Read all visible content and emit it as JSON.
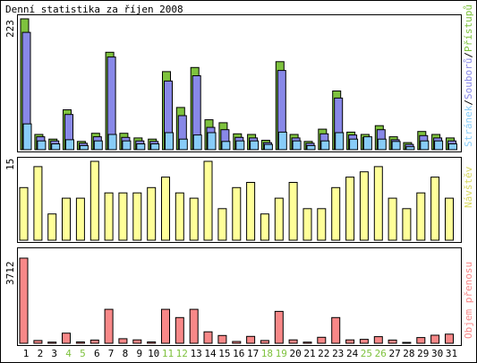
{
  "title": "Denní statistika za říjen 2008",
  "colors": {
    "green": "#7ec23e",
    "purple": "#8888e8",
    "lightblue": "#88ccf8",
    "yellow": "#ffff99",
    "red": "#f88888",
    "weekend": "#7ec23e",
    "text": "#000000",
    "edge": "#000000"
  },
  "chart_data": [
    {
      "type": "bar",
      "panel": "top",
      "categories": [
        "1",
        "2",
        "3",
        "4",
        "5",
        "6",
        "7",
        "8",
        "9",
        "10",
        "11",
        "12",
        "13",
        "14",
        "15",
        "16",
        "17",
        "18",
        "19",
        "20",
        "21",
        "22",
        "23",
        "24",
        "25",
        "26",
        "27",
        "28",
        "29",
        "30",
        "31"
      ],
      "weekend_days": [
        "4",
        "5",
        "11",
        "12",
        "18",
        "19",
        "25",
        "26"
      ],
      "ymax_label": "223",
      "ylim": [
        0,
        223
      ],
      "legend": {
        "stranek": "Stránek",
        "sep1": "/",
        "souboru": "Souborů",
        "sep2": "/",
        "pristupu": "Přístupů"
      },
      "series": [
        {
          "name": "Přístupů",
          "color_key": "green",
          "values": [
            223,
            26,
            18,
            68,
            14,
            28,
            166,
            28,
            20,
            18,
            133,
            72,
            140,
            51,
            46,
            27,
            26,
            16,
            150,
            26,
            14,
            35,
            100,
            30,
            26,
            41,
            22,
            12,
            31,
            26,
            20
          ]
        },
        {
          "name": "Souborů",
          "color_key": "purple",
          "values": [
            200,
            22,
            15,
            60,
            11,
            22,
            158,
            21,
            15,
            14,
            117,
            58,
            126,
            38,
            34,
            21,
            20,
            12,
            135,
            20,
            11,
            27,
            88,
            25,
            21,
            34,
            17,
            9,
            24,
            20,
            15
          ]
        },
        {
          "name": "Stránek",
          "color_key": "lightblue",
          "values": [
            44,
            15,
            10,
            17,
            7,
            15,
            26,
            15,
            10,
            10,
            29,
            18,
            25,
            29,
            14,
            15,
            15,
            9,
            30,
            15,
            7,
            15,
            29,
            18,
            22,
            18,
            14,
            5,
            15,
            15,
            10
          ]
        }
      ]
    },
    {
      "type": "bar",
      "panel": "middle",
      "categories": [
        "1",
        "2",
        "3",
        "4",
        "5",
        "6",
        "7",
        "8",
        "9",
        "10",
        "11",
        "12",
        "13",
        "14",
        "15",
        "16",
        "17",
        "18",
        "19",
        "20",
        "21",
        "22",
        "23",
        "24",
        "25",
        "26",
        "27",
        "28",
        "29",
        "30",
        "31"
      ],
      "ymax_label": "15",
      "ylim": [
        0,
        15
      ],
      "legend": "Návštěv",
      "series": [
        {
          "name": "Návštěv",
          "color_key": "yellow",
          "values": [
            10,
            14,
            5,
            8,
            8,
            15,
            9,
            9,
            9,
            10,
            12,
            9,
            8,
            15,
            6,
            10,
            11,
            5,
            8,
            11,
            6,
            6,
            10,
            12,
            13,
            14,
            8,
            6,
            9,
            12,
            8
          ]
        }
      ]
    },
    {
      "type": "bar",
      "panel": "bottom",
      "categories": [
        "1",
        "2",
        "3",
        "4",
        "5",
        "6",
        "7",
        "8",
        "9",
        "10",
        "11",
        "12",
        "13",
        "14",
        "15",
        "16",
        "17",
        "18",
        "19",
        "20",
        "21",
        "22",
        "23",
        "24",
        "25",
        "26",
        "27",
        "28",
        "29",
        "30",
        "31"
      ],
      "ymax_label": "3712",
      "ylim": [
        0,
        3712
      ],
      "legend": "Objem přenosu",
      "series": [
        {
          "name": "Objem přenosu",
          "color_key": "red",
          "values": [
            3712,
            120,
            50,
            440,
            60,
            140,
            1480,
            200,
            150,
            60,
            1480,
            1120,
            1480,
            500,
            340,
            80,
            300,
            120,
            1390,
            150,
            50,
            260,
            1120,
            150,
            170,
            290,
            140,
            40,
            250,
            350,
            400
          ]
        }
      ]
    }
  ]
}
